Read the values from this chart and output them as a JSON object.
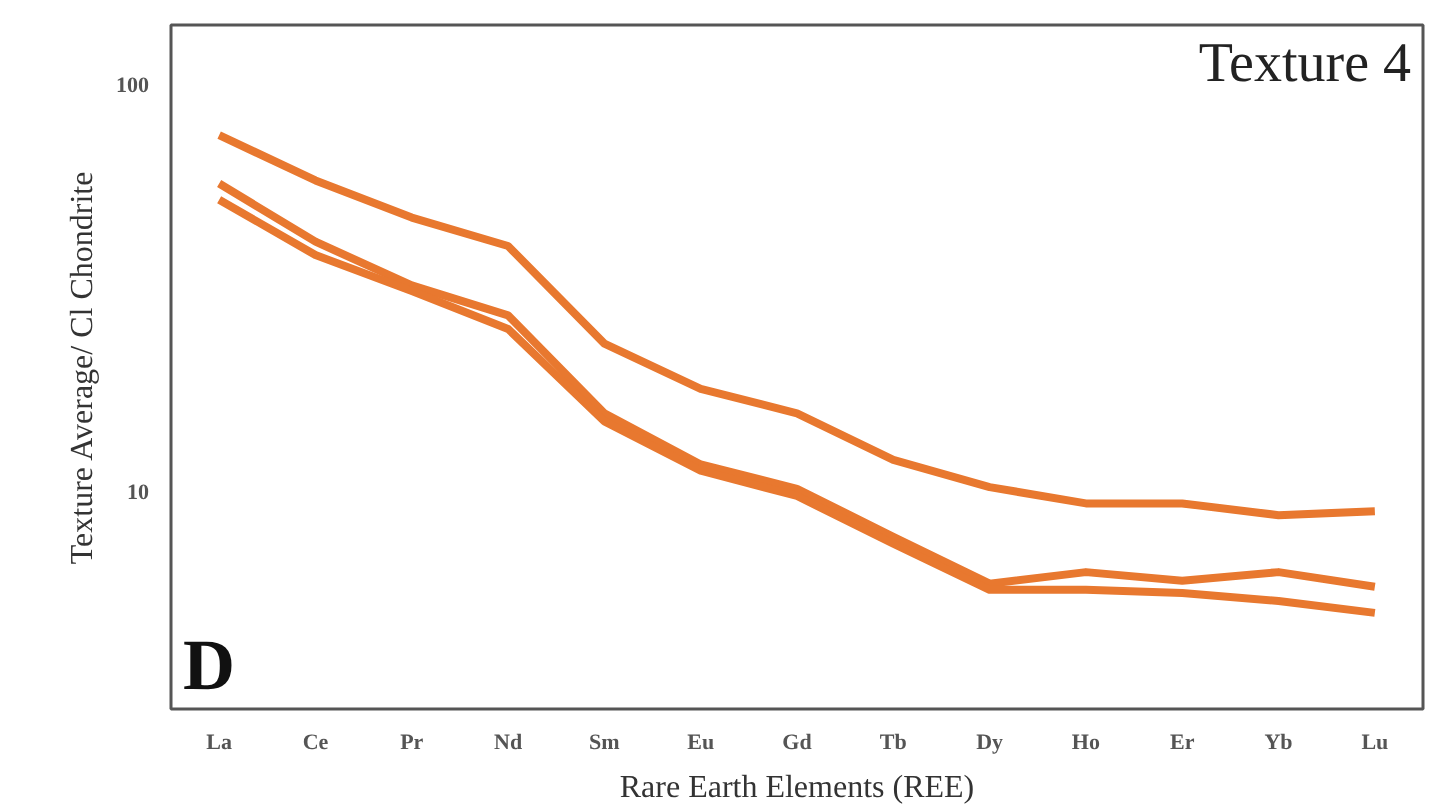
{
  "chart_data": {
    "type": "line",
    "xlabel": "Rare Earth Elements (REE)",
    "ylabel": "Texture Average/ Cl Chondrite",
    "annotations": [
      "Texture 4",
      "D"
    ],
    "categories": [
      "La",
      "Ce",
      "Pr",
      "Nd",
      "Sm",
      "Eu",
      "Gd",
      "Tb",
      "Dy",
      "Ho",
      "Er",
      "Yb",
      "Lu"
    ],
    "log": "y",
    "ylim": [
      2.9,
      140
    ],
    "yticks": [
      10,
      100
    ],
    "grid": false,
    "marker": "none",
    "line_style": "solid",
    "series": [
      {
        "color": "#e8782f",
        "values": [
          75,
          58,
          47,
          40,
          23,
          17.8,
          15.5,
          11.9,
          10.2,
          9.3,
          9.3,
          8.7,
          8.9
        ]
      },
      {
        "color": "#e8782f",
        "values": [
          57,
          41,
          32,
          27,
          15.5,
          11.6,
          10.1,
          7.7,
          5.9,
          6.3,
          6.0,
          6.3,
          5.8
        ]
      },
      {
        "color": "#e8782f",
        "values": [
          52,
          38,
          31,
          25,
          14.8,
          11.2,
          9.7,
          7.4,
          5.7,
          5.7,
          5.6,
          5.35,
          5.0
        ]
      }
    ]
  }
}
